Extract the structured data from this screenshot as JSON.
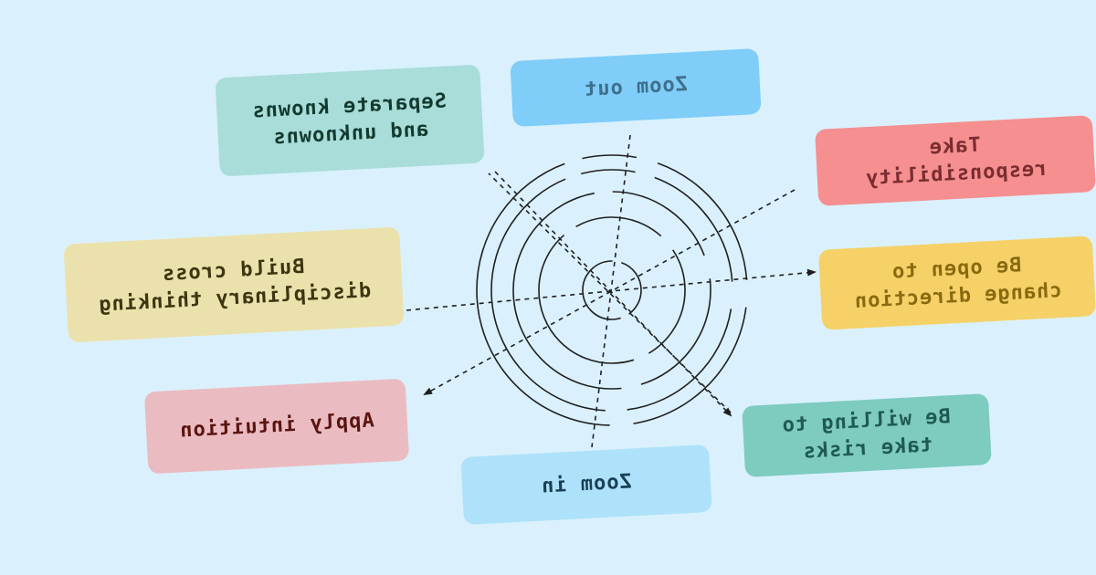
{
  "colors": {
    "background": "#daf1fd",
    "line": "#1f1f1f"
  },
  "cards": [
    {
      "id": "zoom-out",
      "label": "Zoom out",
      "bg": "#7fcdf8",
      "fg": "#3f6f8a"
    },
    {
      "id": "separate-knowns",
      "label": "Separate knowns\nand unknowns",
      "bg": "#a9ddd9",
      "fg": "#123a2f"
    },
    {
      "id": "take-responsibility",
      "label": "Take\nresponsibility",
      "bg": "#f58f90",
      "fg": "#7a2c2f"
    },
    {
      "id": "build-cross",
      "label": "Build cross\ndisciplinary thinking",
      "bg": "#ebe1ac",
      "fg": "#3e3410"
    },
    {
      "id": "be-open",
      "label": "Be open to\nchange direction",
      "bg": "#f5d167",
      "fg": "#8a6a10"
    },
    {
      "id": "apply-intuition",
      "label": "Apply intuition",
      "bg": "#eabcc1",
      "fg": "#5a1410"
    },
    {
      "id": "be-willing",
      "label": "Be willing to\ntake risks",
      "bg": "#7ecbc0",
      "fg": "#1f5a50"
    },
    {
      "id": "zoom-in",
      "label": "Zoom in",
      "bg": "#aee2fa",
      "fg": "#1a3f55"
    }
  ]
}
